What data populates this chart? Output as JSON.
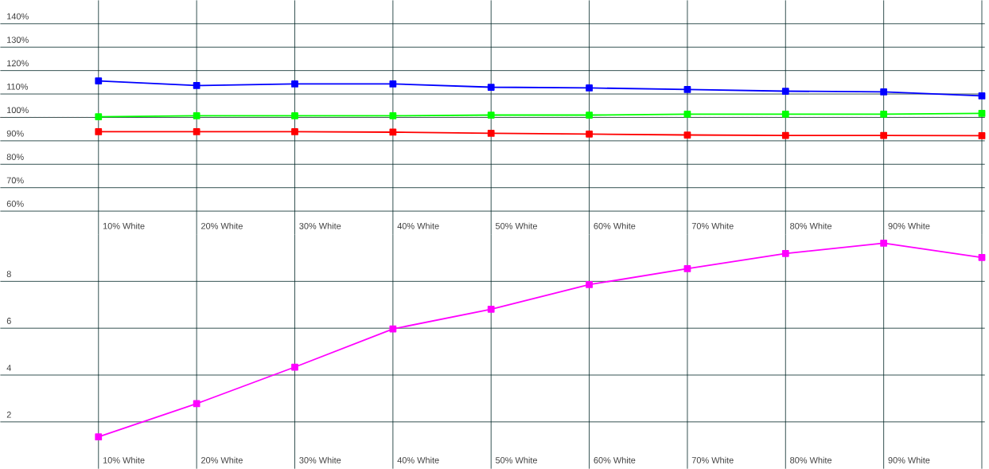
{
  "chart_data": [
    {
      "type": "line",
      "categories": [
        "10% White",
        "20% White",
        "30% White",
        "40% White",
        "50% White",
        "60% White",
        "70% White",
        "80% White",
        "90% White",
        null
      ],
      "series": [
        {
          "color": "#0000ff",
          "values": [
            115.6,
            113.6,
            114.3,
            114.3,
            112.9,
            112.6,
            111.9,
            111.2,
            110.9,
            109.2
          ]
        },
        {
          "color": "#00ff00",
          "values": [
            100.3,
            100.7,
            100.7,
            100.7,
            101.0,
            101.0,
            101.4,
            101.4,
            101.4,
            101.7
          ]
        },
        {
          "color": "#ff0000",
          "values": [
            93.9,
            93.9,
            93.9,
            93.7,
            93.2,
            92.9,
            92.5,
            92.3,
            92.3,
            92.2
          ]
        }
      ],
      "ylim": [
        50,
        150
      ],
      "yticks": [
        {
          "value": 60,
          "label": "60%"
        },
        {
          "value": 70,
          "label": "70%"
        },
        {
          "value": 80,
          "label": "80%"
        },
        {
          "value": 90,
          "label": "90%"
        },
        {
          "value": 100,
          "label": "100%"
        },
        {
          "value": 110,
          "label": "110%"
        },
        {
          "value": 120,
          "label": "120%"
        },
        {
          "value": 130,
          "label": "130%"
        },
        {
          "value": 140,
          "label": "140%"
        }
      ],
      "ref_lines": [
        {
          "axis": "y",
          "value": 100,
          "line_style": "dashed",
          "color": "#555555"
        }
      ],
      "grid": true,
      "marker": "square",
      "line_style": "solid"
    },
    {
      "type": "line",
      "categories": [
        "10% White",
        "20% White",
        "30% White",
        "40% White",
        "50% White",
        "60% White",
        "70% White",
        "80% White",
        "90% White",
        null
      ],
      "series": [
        {
          "color": "#ff00ff",
          "values": [
            1.36,
            2.78,
            4.34,
            5.97,
            6.81,
            7.86,
            8.54,
            9.19,
            9.63,
            9.02
          ]
        }
      ],
      "ylim": [
        0,
        10
      ],
      "yticks": [
        2,
        4,
        6,
        8
      ],
      "grid": true,
      "marker": "square",
      "line_style": "solid"
    }
  ]
}
